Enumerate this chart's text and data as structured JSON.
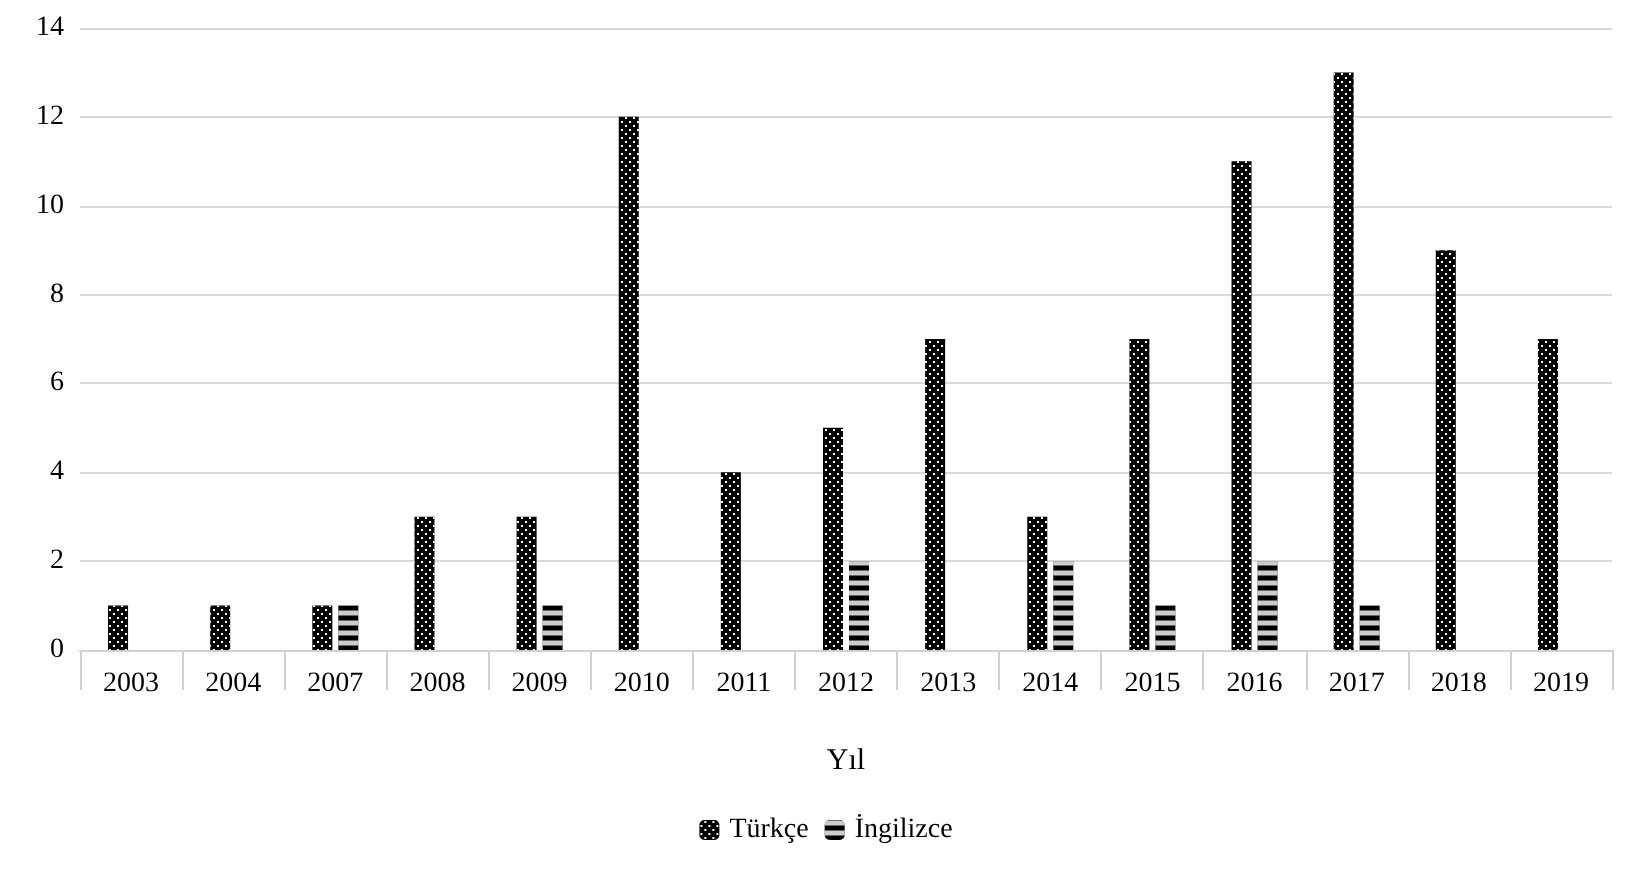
{
  "chart_data": {
    "type": "bar",
    "xlabel": "Yıl",
    "categories": [
      "2003",
      "2004",
      "2007",
      "2008",
      "2009",
      "2010",
      "2011",
      "2012",
      "2013",
      "2014",
      "2015",
      "2016",
      "2017",
      "2018",
      "2019"
    ],
    "series": [
      {
        "name": "Türkçe",
        "color": "#000000",
        "values": [
          1,
          1,
          1,
          3,
          3,
          12,
          4,
          5,
          7,
          3,
          7,
          11,
          13,
          9,
          7
        ]
      },
      {
        "name": "İngilizce",
        "color": "#000000",
        "values": [
          0,
          0,
          1,
          0,
          1,
          0,
          0,
          2,
          0,
          2,
          1,
          2,
          1,
          0,
          0
        ]
      }
    ],
    "ylim": [
      0,
      14
    ],
    "yticks": [
      0,
      2,
      4,
      6,
      8,
      10,
      12,
      14
    ],
    "grid": "y",
    "legend": "bottom"
  }
}
